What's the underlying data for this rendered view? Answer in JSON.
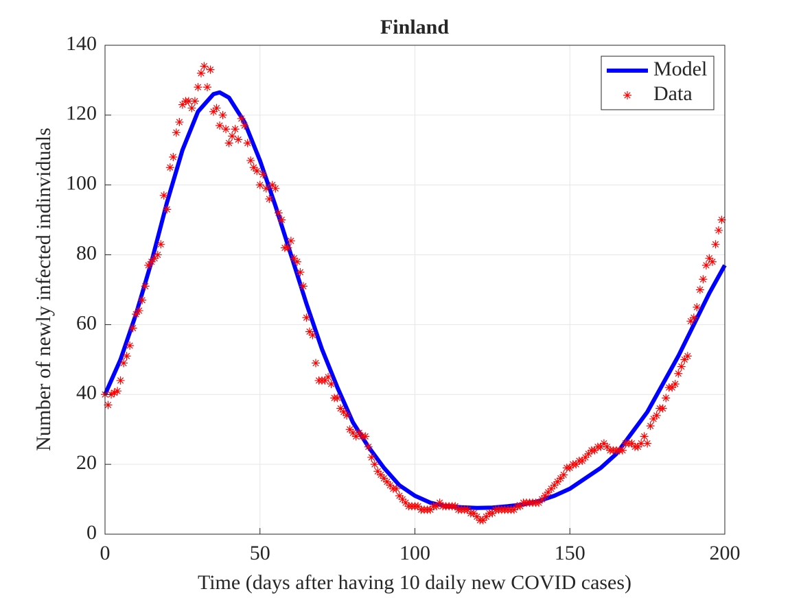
{
  "chart_data": {
    "type": "line",
    "title": "Finland",
    "x_label": "Time (days after having 10 daily new COVID cases)",
    "y_label": "Number of newly infected indinviduals",
    "xlim": [
      0,
      200
    ],
    "xticks": [
      0,
      50,
      100,
      150,
      200
    ],
    "ylim": [
      0,
      140
    ],
    "yticks": [
      0,
      20,
      40,
      60,
      80,
      100,
      120,
      140
    ],
    "grid": true,
    "legend": "upper right",
    "series": [
      {
        "name": "Model",
        "color": "#0000ff",
        "style": "line",
        "x": [
          0,
          5,
          10,
          15,
          20,
          25,
          30,
          35,
          37,
          40,
          45,
          50,
          55,
          60,
          65,
          70,
          75,
          80,
          85,
          90,
          95,
          100,
          105,
          110,
          115,
          120,
          125,
          130,
          135,
          140,
          145,
          150,
          155,
          160,
          165,
          170,
          175,
          180,
          185,
          190,
          195,
          200
        ],
        "values": [
          40,
          50,
          63,
          78,
          95,
          110,
          121,
          126,
          126.5,
          125,
          118,
          107,
          94,
          80,
          66,
          53,
          42,
          32,
          25,
          19,
          14,
          11,
          9,
          8,
          7.7,
          7.5,
          7.6,
          8,
          8.5,
          9.5,
          11,
          13,
          16,
          19,
          23,
          29,
          35,
          43,
          51,
          60,
          69,
          77
        ]
      },
      {
        "name": "Data",
        "color": "#ff0000",
        "style": "marker",
        "x": [
          0,
          1,
          2,
          3,
          4,
          5,
          6,
          7,
          8,
          9,
          10,
          11,
          12,
          13,
          14,
          15,
          16,
          17,
          18,
          19,
          20,
          21,
          22,
          23,
          24,
          25,
          26,
          27,
          28,
          29,
          30,
          31,
          32,
          33,
          34,
          35,
          36,
          37,
          38,
          39,
          40,
          41,
          42,
          43,
          44,
          45,
          46,
          47,
          48,
          49,
          50,
          51,
          52,
          53,
          54,
          55,
          56,
          57,
          58,
          59,
          60,
          61,
          62,
          63,
          64,
          65,
          66,
          67,
          68,
          69,
          70,
          71,
          72,
          73,
          74,
          75,
          76,
          77,
          78,
          79,
          80,
          81,
          82,
          83,
          84,
          85,
          86,
          87,
          88,
          89,
          90,
          91,
          92,
          93,
          94,
          95,
          96,
          97,
          98,
          99,
          100,
          101,
          102,
          103,
          104,
          105,
          106,
          107,
          108,
          109,
          110,
          111,
          112,
          113,
          114,
          115,
          116,
          117,
          118,
          119,
          120,
          121,
          122,
          123,
          124,
          125,
          126,
          127,
          128,
          129,
          130,
          131,
          132,
          133,
          134,
          135,
          136,
          137,
          138,
          139,
          140,
          141,
          142,
          143,
          144,
          145,
          146,
          147,
          148,
          149,
          150,
          151,
          152,
          153,
          154,
          155,
          156,
          157,
          158,
          159,
          160,
          161,
          162,
          163,
          164,
          165,
          166,
          167,
          168,
          169,
          170,
          171,
          172,
          173,
          174,
          175,
          176,
          177,
          178,
          179,
          180,
          181,
          182,
          183,
          184,
          185,
          186,
          187,
          188,
          189,
          190,
          191,
          192,
          193,
          194,
          195,
          196,
          197,
          198,
          199
        ],
        "values": [
          40,
          37,
          40,
          40.5,
          41,
          44,
          49,
          51,
          54,
          59,
          63,
          64,
          67,
          71,
          77,
          78,
          79,
          80,
          83,
          97,
          93,
          105,
          108,
          115,
          118,
          123,
          124,
          124,
          122,
          124,
          128,
          132,
          134,
          128,
          133,
          121,
          122,
          117,
          120,
          116,
          112,
          114,
          116,
          113,
          119,
          117,
          112,
          107,
          105,
          104,
          100,
          103,
          99,
          96,
          100,
          99,
          92,
          90,
          82,
          82,
          84,
          79,
          78,
          75,
          71,
          62,
          58,
          57,
          49,
          44,
          44,
          44,
          45,
          43,
          39,
          39,
          36,
          35,
          34,
          30,
          29,
          28,
          29,
          28,
          28,
          25,
          22,
          20,
          18,
          17,
          16,
          15,
          14,
          13,
          13,
          11,
          10,
          9,
          8,
          8,
          8,
          8,
          7,
          7,
          7,
          7,
          8,
          8,
          9,
          8,
          8,
          8,
          8,
          8,
          7,
          7,
          7,
          7,
          6,
          6,
          5,
          4,
          4,
          5,
          6,
          6,
          7,
          7,
          7,
          7,
          7,
          7,
          7,
          8,
          8,
          9,
          9,
          9,
          9,
          9,
          9,
          10,
          11,
          12,
          13,
          14,
          15,
          16,
          17,
          19,
          19,
          20,
          20,
          21,
          21,
          22,
          23,
          24,
          24,
          25,
          25,
          26,
          25,
          24,
          24,
          24,
          24,
          24,
          26,
          26,
          26,
          25,
          25,
          26,
          28,
          26,
          31,
          33,
          34,
          36,
          36,
          39,
          42,
          42,
          43,
          46,
          48,
          50,
          51,
          61,
          62,
          65,
          70,
          73,
          77,
          79,
          78,
          83,
          87,
          90
        ]
      }
    ]
  }
}
